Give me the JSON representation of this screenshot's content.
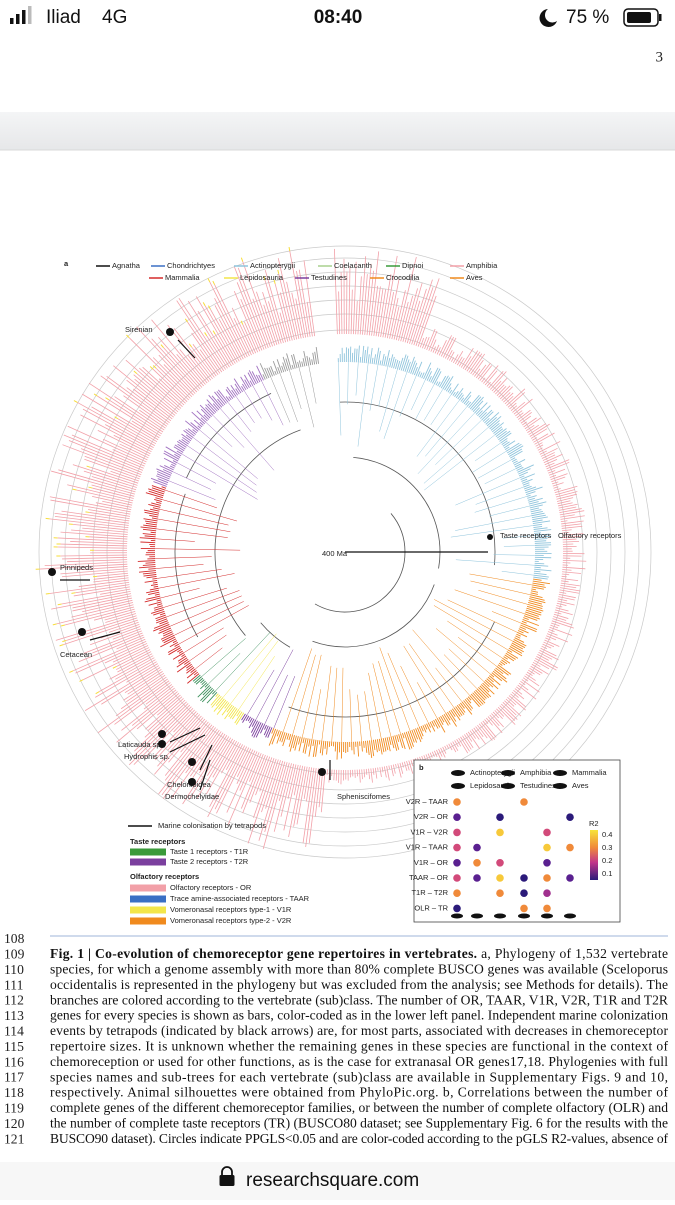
{
  "status_bar": {
    "carrier": "Iliad",
    "network": "4G",
    "time": "08:40",
    "battery": "75 %"
  },
  "page_number": "3",
  "figure": {
    "panel_a": "a",
    "clade_legend": [
      "Agnatha",
      "Chondrichtyes",
      "Actinopterygii",
      "Coelacanth",
      "Dipnoi",
      "Amphibia",
      "Mammalia",
      "Lepidosauria",
      "Testudines",
      "Crocodilia",
      "Aves"
    ],
    "annotations": {
      "sirenian": "Sirenian",
      "pinnipeds": "Pinnipeds",
      "cetacean": "Cetacean",
      "laticauda": "Laticauda sp.",
      "hydrophis": "Hydrophis sp.",
      "chelonioidea": "Chelonioidea",
      "dermochelyidae": "Dermochelyidae",
      "sphenisciformes": "Spheniscifomes",
      "scale": "400 Ma",
      "taste": "Taste receptors",
      "olfactory": "Olfactory receptors"
    },
    "receptor_legend": {
      "marine": "Marine colonisation by tetrapods",
      "taste_heading": "Taste receptors",
      "t1r": "Taste 1 receptors - T1R",
      "t2r": "Taste 2 receptors - T2R",
      "olfactory_heading": "Olfactory receptors",
      "or": "Olfactory receptors - OR",
      "taar": "Trace amine-associated receptors - TAAR",
      "v1r": "Vomeronasal receptors type-1 - V1R",
      "v2r": "Vomeronasal receptors type-2 - V2R"
    },
    "panel_b": {
      "label": "b",
      "taxa": [
        "Actinopterygii",
        "Amphibia",
        "Mammalia",
        "Lepidosauria",
        "Testudines",
        "Aves"
      ],
      "rows": [
        "V2R – TAAR",
        "V2R – OR",
        "V1R – V2R",
        "V1R – TAAR",
        "V1R – OR",
        "TAAR – OR",
        "T1R – T2R",
        "OLR – TR"
      ],
      "colorbar_title": "R2",
      "colorbar_ticks": [
        "0.4",
        "0.3",
        "0.2",
        "0.1"
      ]
    }
  },
  "caption": {
    "line_numbers": [
      "108",
      "109",
      "110",
      "111",
      "112",
      "113",
      "114",
      "115",
      "116",
      "117",
      "118",
      "119",
      "120",
      "121"
    ],
    "lead": "Fig. 1 | Co-evolution of chemoreceptor gene repertoires in vertebrates.",
    "lines": [
      " a, Phylogeny of 1,532 vertebrate",
      "species, for which a genome assembly with more than 80% complete BUSCO genes was available (Sceloporus",
      "occidentalis is represented in the phylogeny but was excluded from the analysis; see Methods for details). The",
      "branches are colored according to the vertebrate (sub)class. The number of OR, TAAR, V1R, V2R, T1R and T2R",
      "genes for every species is shown as bars, color-coded as in the lower left panel. Independent marine colonization",
      "events by tetrapods (indicated by black arrows) are, for most parts, associated with decreases in chemoreceptor",
      "repertoire sizes. It is unknown whether the remaining genes in these species are functional in the context of",
      "chemoreception or used for other functions, as is the case for extranasal OR genes17,18. Phylogenies with full",
      "species names and sub-trees for each vertebrate (sub)class are available in Supplementary Figs. 9 and 10,",
      "respectively. Animal silhouettes were obtained from PhyloPic.org. b, Correlations between the number of",
      "complete genes of the different chemoreceptor families, or between the number of complete olfactory (OLR) and",
      "the number of complete taste receptors (TR) (BUSCO80 dataset; see Supplementary Fig. 6 for the results with the",
      "BUSCO90 dataset). Circles indicate PPGLS<0.05 and are color-coded according to the pGLS R2-values, absence of"
    ]
  },
  "url": "researchsquare.com"
}
